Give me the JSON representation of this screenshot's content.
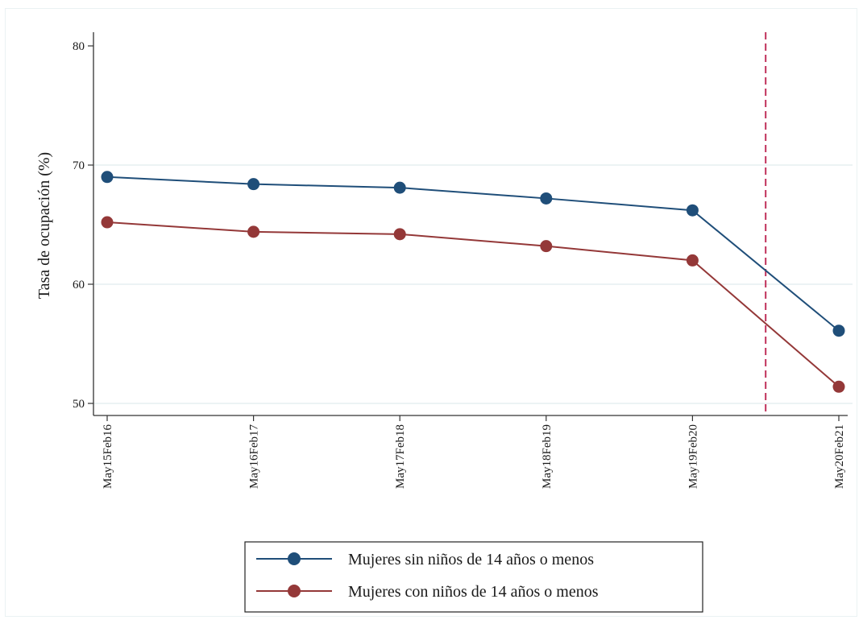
{
  "chart_data": {
    "type": "line",
    "title": "",
    "xlabel": "",
    "ylabel": "Tasa de ocupación (%)",
    "categories": [
      "May15Feb16",
      "May16Feb17",
      "May17Feb18",
      "May18Feb19",
      "May19Feb20",
      "May20Feb21"
    ],
    "ylim": [
      49,
      81
    ],
    "yticks": [
      50,
      60,
      70,
      80
    ],
    "grid": true,
    "legend_position": "bottom",
    "vline_between": [
      "May19Feb20",
      "May20Feb21"
    ],
    "vline_position": 4.5,
    "vline_color": "#c0305a",
    "series": [
      {
        "name": "Mujeres sin niños de 14 años o menos",
        "color": "#1f4e79",
        "values": [
          69.0,
          68.4,
          68.1,
          67.2,
          66.2,
          56.1
        ]
      },
      {
        "name": "Mujeres con niños de 14 años o menos",
        "color": "#943838",
        "values": [
          65.2,
          64.4,
          64.2,
          63.2,
          62.0,
          51.4
        ]
      }
    ]
  }
}
